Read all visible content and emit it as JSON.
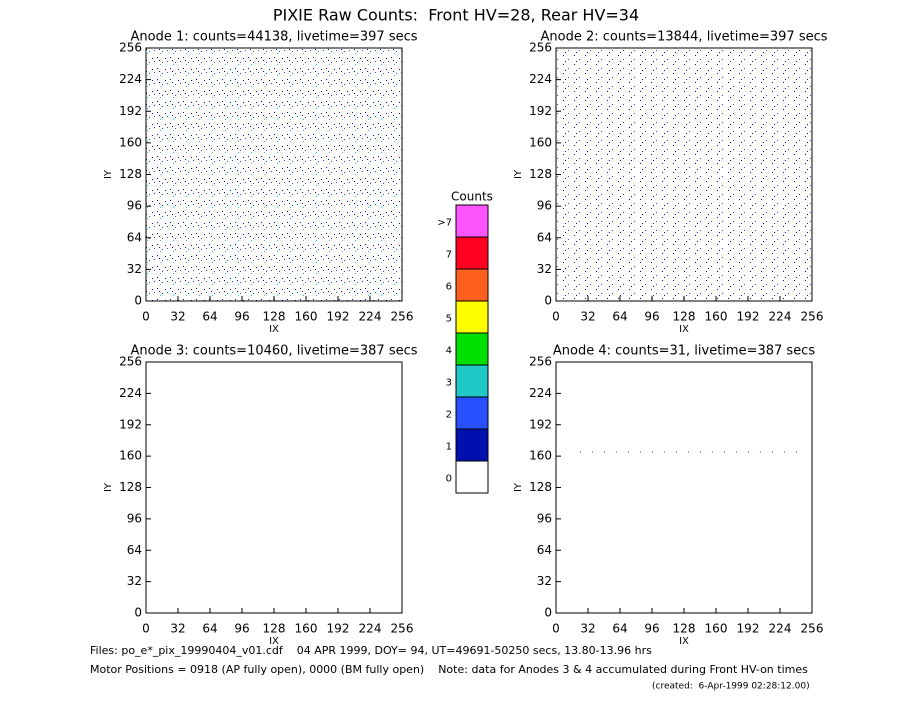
{
  "title": "PIXIE Raw Counts:  Front HV=28, Rear HV=34",
  "chart_data": [
    {
      "type": "heatmap",
      "title": "Anode 1: counts=44138, livetime=397 secs",
      "xlabel": "IX",
      "ylabel": "IY",
      "xlim": [
        0,
        256
      ],
      "ylim": [
        0,
        256
      ],
      "xticks": [
        0,
        32,
        64,
        96,
        128,
        160,
        192,
        224,
        256
      ],
      "yticks": [
        0,
        32,
        64,
        96,
        128,
        160,
        192,
        224,
        256
      ]
    },
    {
      "type": "heatmap",
      "title": "Anode 2: counts=13844, livetime=397 secs",
      "xlabel": "IX",
      "ylabel": "IY",
      "xlim": [
        0,
        256
      ],
      "ylim": [
        0,
        256
      ],
      "xticks": [
        0,
        32,
        64,
        96,
        128,
        160,
        192,
        224,
        256
      ],
      "yticks": [
        0,
        32,
        64,
        96,
        128,
        160,
        192,
        224,
        256
      ]
    },
    {
      "type": "heatmap",
      "title": "Anode 3: counts=10460, livetime=387 secs",
      "xlabel": "IX",
      "ylabel": "IY",
      "xlim": [
        0,
        256
      ],
      "ylim": [
        0,
        256
      ],
      "xticks": [
        0,
        32,
        64,
        96,
        128,
        160,
        192,
        224,
        256
      ],
      "yticks": [
        0,
        32,
        64,
        96,
        128,
        160,
        192,
        224,
        256
      ]
    },
    {
      "type": "heatmap",
      "title": "Anode 4: counts=31, livetime=387 secs",
      "xlabel": "IX",
      "ylabel": "IY",
      "xlim": [
        0,
        256
      ],
      "ylim": [
        0,
        256
      ],
      "xticks": [
        0,
        32,
        64,
        96,
        128,
        160,
        192,
        224,
        256
      ],
      "yticks": [
        0,
        32,
        64,
        96,
        128,
        160,
        192,
        224,
        256
      ]
    }
  ],
  "colorbar": {
    "title": "Counts",
    "labels": [
      0,
      1,
      2,
      3,
      4,
      5,
      6,
      7,
      ">7"
    ],
    "colors": [
      "#ffffff",
      "#0010b0",
      "#2850ff",
      "#20c8c8",
      "#00e000",
      "#ffff00",
      "#ff6020",
      "#ff0020",
      "#ff55ff"
    ]
  },
  "footer": [
    "Files: po_e*_pix_19990404_v01.cdf    04 APR 1999, DOY= 94, UT=49691-50250 secs, 13.80-13.96 hrs",
    "Motor Positions = 0918 (AP fully open), 0000 (BM fully open)    Note: data for Anodes 3 & 4 accumulated during Front HV-on times",
    "(created:  6-Apr-1999 02:28:12.00)"
  ]
}
